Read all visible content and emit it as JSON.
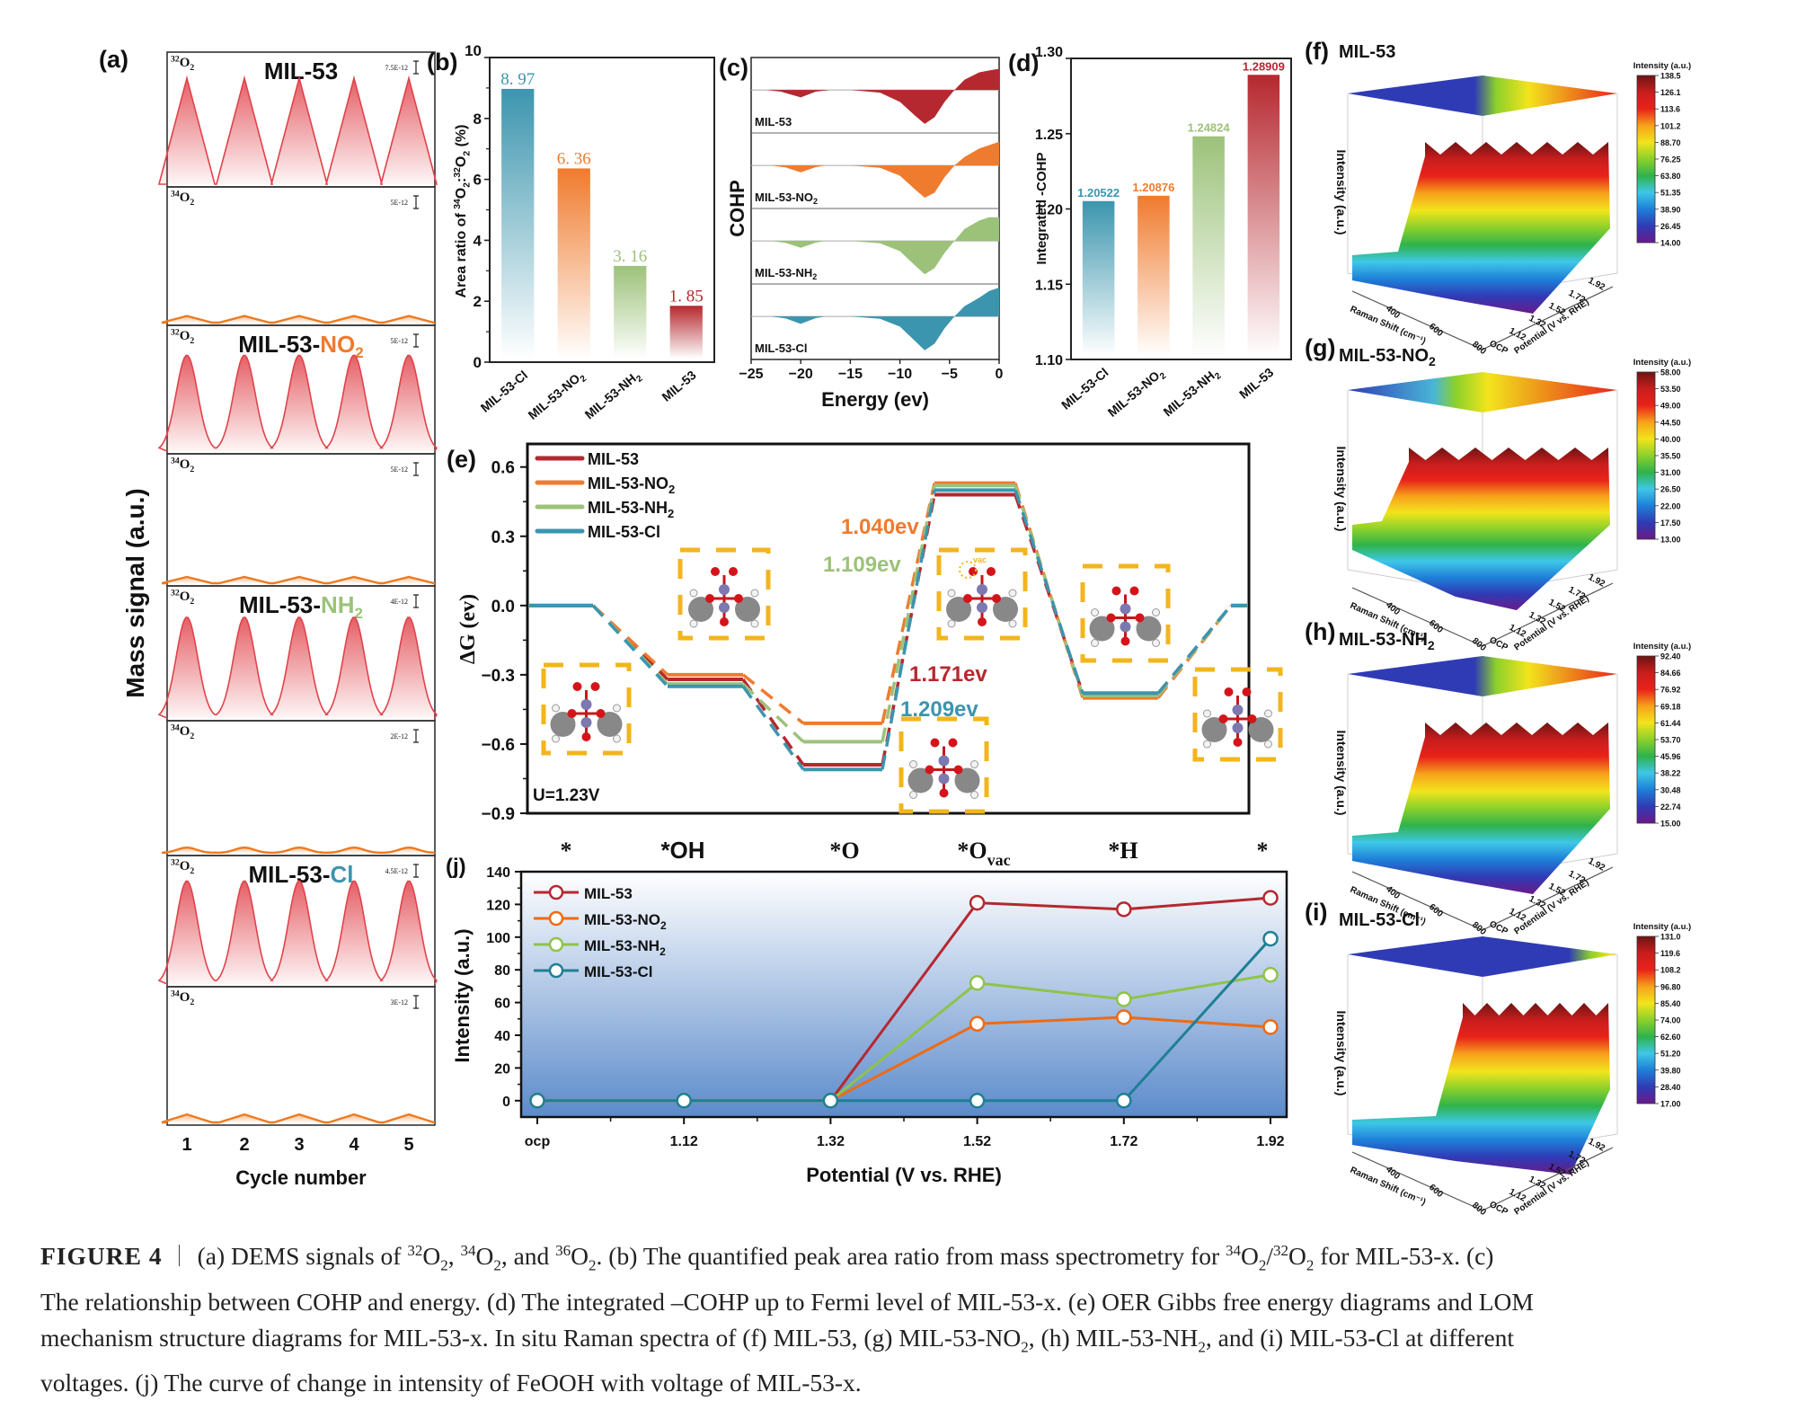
{
  "figure": {
    "label": "FIGURE 4",
    "caption_lines": [
      [
        {
          "t": "(a) DEMS signals of "
        },
        {
          "sup": "32"
        },
        {
          "t": "O"
        },
        {
          "sub": "2"
        },
        {
          "t": ", "
        },
        {
          "sup": "34"
        },
        {
          "t": "O"
        },
        {
          "sub": "2"
        },
        {
          "t": ", and "
        },
        {
          "sup": "36"
        },
        {
          "t": "O"
        },
        {
          "sub": "2"
        },
        {
          "t": ". (b) The quantified peak area ratio from mass spectrometry for "
        },
        {
          "sup": "34"
        },
        {
          "t": "O"
        },
        {
          "sub": "2"
        },
        {
          "t": "/"
        },
        {
          "sup": "32"
        },
        {
          "t": "O"
        },
        {
          "sub": "2"
        },
        {
          "t": " for MIL-53-x. (c)"
        }
      ],
      [
        {
          "t": "The relationship between COHP and energy. (d) The integrated –COHP up to Fermi level of MIL-53-x. (e) OER Gibbs free energy diagrams and LOM"
        }
      ],
      [
        {
          "t": "mechanism structure diagrams for MIL-53-x. In situ Raman spectra of (f) MIL-53, (g) MIL-53-NO"
        },
        {
          "sub": "2"
        },
        {
          "t": ", (h) MIL-53-NH"
        },
        {
          "sub": "2"
        },
        {
          "t": ", and (i) MIL-53-Cl at different"
        }
      ],
      [
        {
          "t": "voltages. (j) The curve of change in intensity of FeOOH with voltage of MIL-53-x."
        }
      ]
    ]
  },
  "colors": {
    "MIL-53": "#b5282f",
    "MIL-53-NO2": "#ef7b2e",
    "MIL-53-NH2": "#9cc27a",
    "MIL-53-Cl": "#3c95ae",
    "dems_32": "#e0434b",
    "dems_34": "#ef7a1f",
    "box_dash": "#f2b51c"
  },
  "chart_data": [
    {
      "id": "a",
      "panel_label": "(a)",
      "type": "line",
      "title": "",
      "ylabel": "Mass signal (a.u.)",
      "xlabel": "Cycle number",
      "xticks": [
        "1",
        "2",
        "3",
        "4",
        "5"
      ],
      "subplots": [
        {
          "material": "MIL-53",
          "material_base": "MIL-53",
          "material_suffix": "",
          "species": "32O2",
          "species_sup": "32",
          "scale_label": "7.5E-12",
          "peak_rel": 0.82,
          "shape": "triangle"
        },
        {
          "material": "MIL-53",
          "species": "34O2",
          "species_sup": "34",
          "scale_label": "5E-12",
          "peak_rel": 0.05,
          "shape": "triangle"
        },
        {
          "material": "MIL-53-NO2",
          "material_base": "MIL-53-",
          "material_suffix": "NO",
          "material_sub": "2",
          "species": "32O2",
          "species_sup": "32",
          "scale_label": "5E-12",
          "peak_rel": 0.78,
          "shape": "gauss"
        },
        {
          "material": "MIL-53-NO2",
          "species": "34O2",
          "species_sup": "34",
          "scale_label": "5E-12",
          "peak_rel": 0.05,
          "shape": "triangle"
        },
        {
          "material": "MIL-53-NH2",
          "material_base": "MIL-53-",
          "material_suffix": "NH",
          "material_sub": "2",
          "species": "32O2",
          "species_sup": "32",
          "scale_label": "4E-12",
          "peak_rel": 0.78,
          "shape": "gauss"
        },
        {
          "material": "MIL-53-NH2",
          "species": "34O2",
          "species_sup": "34",
          "scale_label": "2E-12",
          "peak_rel": 0.04,
          "shape": "gauss"
        },
        {
          "material": "MIL-53-Cl",
          "material_base": "MIL-53-",
          "material_suffix": "Cl",
          "material_sub": "",
          "species": "32O2",
          "species_sup": "32",
          "scale_label": "4.5E-12",
          "peak_rel": 0.82,
          "shape": "gauss"
        },
        {
          "material": "MIL-53-Cl",
          "species": "34O2",
          "species_sup": "34",
          "scale_label": "3E-12",
          "peak_rel": 0.06,
          "shape": "triangle"
        }
      ]
    },
    {
      "id": "b",
      "panel_label": "(b)",
      "type": "bar",
      "ylabel": "Area ratio of 34O2:32O2 (%)",
      "ylabel_parts": [
        {
          "t": "Area ratio of "
        },
        {
          "sup": "34"
        },
        {
          "t": "O"
        },
        {
          "sub": "2"
        },
        {
          "t": ":"
        },
        {
          "sup": "32"
        },
        {
          "t": "O"
        },
        {
          "sub": "2"
        },
        {
          "t": " (%)"
        }
      ],
      "categories": [
        "MIL-53-Cl",
        "MIL-53-NO2",
        "MIL-53-NH2",
        "MIL-53"
      ],
      "values": [
        8.97,
        6.36,
        3.16,
        1.85
      ],
      "data_labels": [
        "8. 97",
        "6. 36",
        "3. 16",
        "1. 85"
      ],
      "ylim": [
        0,
        10
      ],
      "yticks": [
        0,
        2,
        4,
        6,
        8,
        10
      ]
    },
    {
      "id": "c",
      "panel_label": "(c)",
      "type": "area",
      "ylabel": "COHP",
      "xlabel": "Energy (ev)",
      "xlim": [
        -25,
        0
      ],
      "xticks": [
        -25,
        -20,
        -15,
        -10,
        -5,
        0
      ],
      "series": [
        {
          "name": "MIL-53",
          "label": "MIL-53",
          "sub": "",
          "points": [
            [
              -25,
              0
            ],
            [
              -23.5,
              0
            ],
            [
              -22,
              -0.05
            ],
            [
              -20,
              -0.22
            ],
            [
              -18.5,
              -0.05
            ],
            [
              -17,
              0
            ],
            [
              -15,
              0
            ],
            [
              -12,
              -0.08
            ],
            [
              -10,
              -0.35
            ],
            [
              -8.5,
              -0.75
            ],
            [
              -7.5,
              -1.0
            ],
            [
              -6.5,
              -0.8
            ],
            [
              -5.5,
              -0.35
            ],
            [
              -4.5,
              0
            ],
            [
              -3.5,
              0.3
            ],
            [
              -2,
              0.52
            ],
            [
              -0.5,
              0.6
            ],
            [
              0,
              0.62
            ]
          ]
        },
        {
          "name": "MIL-53-NO2",
          "label": "MIL-53-NO",
          "sub": "2",
          "points": [
            [
              -25,
              0
            ],
            [
              -23,
              0
            ],
            [
              -21.5,
              -0.06
            ],
            [
              -20,
              -0.2
            ],
            [
              -18.5,
              -0.05
            ],
            [
              -17.5,
              0
            ],
            [
              -15,
              0
            ],
            [
              -12,
              -0.07
            ],
            [
              -10,
              -0.3
            ],
            [
              -8.5,
              -0.7
            ],
            [
              -7.5,
              -0.95
            ],
            [
              -6.5,
              -0.8
            ],
            [
              -5.5,
              -0.35
            ],
            [
              -4.5,
              0
            ],
            [
              -3.5,
              0.25
            ],
            [
              -2,
              0.5
            ],
            [
              -0.5,
              0.65
            ],
            [
              0,
              0.7
            ]
          ]
        },
        {
          "name": "MIL-53-NH2",
          "label": "MIL-53-NH",
          "sub": "2",
          "points": [
            [
              -25,
              0
            ],
            [
              -23,
              0
            ],
            [
              -21.5,
              -0.06
            ],
            [
              -20,
              -0.2
            ],
            [
              -18.5,
              -0.05
            ],
            [
              -17.5,
              0
            ],
            [
              -15,
              0
            ],
            [
              -12,
              -0.07
            ],
            [
              -10,
              -0.3
            ],
            [
              -8.5,
              -0.72
            ],
            [
              -7.5,
              -0.98
            ],
            [
              -6.5,
              -0.8
            ],
            [
              -5.5,
              -0.35
            ],
            [
              -4.5,
              0
            ],
            [
              -3.5,
              0.35
            ],
            [
              -2,
              0.6
            ],
            [
              -1,
              0.7
            ],
            [
              0,
              0.7
            ]
          ]
        },
        {
          "name": "MIL-53-Cl",
          "label": "MIL-53-Cl",
          "sub": "",
          "points": [
            [
              -25,
              0
            ],
            [
              -23,
              0
            ],
            [
              -21.5,
              -0.06
            ],
            [
              -20,
              -0.22
            ],
            [
              -18.5,
              -0.05
            ],
            [
              -17.5,
              0
            ],
            [
              -15,
              0
            ],
            [
              -12,
              -0.07
            ],
            [
              -10,
              -0.3
            ],
            [
              -8.5,
              -0.72
            ],
            [
              -7.5,
              -1.0
            ],
            [
              -6.5,
              -0.8
            ],
            [
              -5.5,
              -0.35
            ],
            [
              -4.5,
              0
            ],
            [
              -3.5,
              0.3
            ],
            [
              -2,
              0.55
            ],
            [
              -1,
              0.75
            ],
            [
              0,
              0.85
            ]
          ]
        }
      ]
    },
    {
      "id": "d",
      "panel_label": "(d)",
      "type": "bar",
      "ylabel": "Integrated -COHP",
      "categories": [
        "MIL-53-Cl",
        "MIL-53-NO2",
        "MIL-53-NH2",
        "MIL-53"
      ],
      "values": [
        1.20522,
        1.20876,
        1.24824,
        1.28909
      ],
      "data_labels": [
        "1.20522",
        "1.20876",
        "1.24824",
        "1.28909"
      ],
      "ylim": [
        1.1,
        1.3
      ],
      "yticks": [
        "1.10",
        "1.15",
        "1.20",
        "1.25",
        "1.30"
      ]
    },
    {
      "id": "e",
      "panel_label": "(e)",
      "type": "line",
      "ylabel": "ΔG (ev)",
      "ylim": [
        -0.9,
        0.7
      ],
      "yticks": [
        "0.6",
        "0.3",
        "0.0",
        "-0.3",
        "-0.6",
        "-0.9"
      ],
      "ytick_values": [
        0.6,
        0.3,
        0.0,
        -0.3,
        -0.6,
        -0.9
      ],
      "steps": [
        "*",
        "*OH",
        "*O",
        "*Ovac",
        "*H",
        "*"
      ],
      "step_labels": [
        {
          "main": "*",
          "sub": ""
        },
        {
          "main": "*OH",
          "sub": ""
        },
        {
          "main": "*O",
          "sub": ""
        },
        {
          "main": "*O",
          "sub": "vac"
        },
        {
          "main": "*H",
          "sub": ""
        },
        {
          "main": "*",
          "sub": ""
        }
      ],
      "annotation": "U=1.23V",
      "series": [
        {
          "name": "MIL-53",
          "legend": "MIL-53",
          "legend_sub": "",
          "values": [
            0.0,
            -0.32,
            -0.69,
            0.48,
            -0.38,
            0.0
          ],
          "barrier": "1.171ev"
        },
        {
          "name": "MIL-53-NO2",
          "legend": "MIL-53-NO",
          "legend_sub": "2",
          "values": [
            0.0,
            -0.3,
            -0.51,
            0.53,
            -0.4,
            0.0
          ],
          "barrier": "1.040ev"
        },
        {
          "name": "MIL-53-NH2",
          "legend": "MIL-53-NH",
          "legend_sub": "2",
          "values": [
            0.0,
            -0.34,
            -0.59,
            0.52,
            -0.39,
            0.0
          ],
          "barrier": "1.109ev"
        },
        {
          "name": "MIL-53-Cl",
          "legend": "MIL-53-Cl",
          "legend_sub": "",
          "values": [
            0.0,
            -0.35,
            -0.71,
            0.5,
            -0.38,
            0.0
          ],
          "barrier": "1.209ev"
        }
      ],
      "structure_insets": [
        "*",
        "*OH",
        "*Ovac",
        "*O",
        "*H",
        "*"
      ],
      "vacancy_label": "vac"
    },
    {
      "id": "j",
      "panel_label": "(j)",
      "type": "line",
      "xlabel": "Potential (V vs. RHE)",
      "ylabel": "Intensity (a.u.)",
      "categories": [
        "ocp",
        "1.12",
        "1.32",
        "1.52",
        "1.72",
        "1.92"
      ],
      "ylim": [
        -10,
        140
      ],
      "yticks": [
        0,
        20,
        40,
        60,
        80,
        100,
        120,
        140
      ],
      "series": [
        {
          "name": "MIL-53",
          "legend": "MIL-53",
          "legend_sub": "",
          "values": [
            0,
            0,
            0,
            121,
            117,
            124
          ]
        },
        {
          "name": "MIL-53-NO2",
          "legend": "MIL-53-NO",
          "legend_sub": "2",
          "values": [
            0,
            0,
            0,
            47,
            51,
            45
          ]
        },
        {
          "name": "MIL-53-NH2",
          "legend": "MIL-53-NH",
          "legend_sub": "2",
          "values": [
            0,
            0,
            0,
            72,
            62,
            77
          ]
        },
        {
          "name": "MIL-53-Cl",
          "legend": "MIL-53-Cl",
          "legend_sub": "",
          "values": [
            0,
            0,
            0,
            0,
            0,
            99
          ]
        }
      ]
    },
    {
      "id": "f",
      "panel_label": "(f)",
      "type": "heatmap",
      "title": "MIL-53",
      "title_sub": "",
      "colorbar_title": "Intensity (a.u.)",
      "colorbar_ticks": [
        "138.5",
        "126.1",
        "113.6",
        "101.2",
        "88.70",
        "76.25",
        "63.80",
        "51.35",
        "38.90",
        "26.45",
        "14.00"
      ],
      "zlabel": "Intensity (a.u.)",
      "xlabel": "Raman Shift (cm⁻¹)",
      "xticks": [
        "400",
        "600",
        "800"
      ],
      "ylabel": "Potential (V vs. RHE)",
      "yticks": [
        "OCP",
        "1.12",
        "1.32",
        "1.52",
        "1.72",
        "1.92"
      ],
      "step_at_potential": "1.52",
      "low_level": 0.2,
      "high_level": 0.8
    },
    {
      "id": "g",
      "panel_label": "(g)",
      "type": "heatmap",
      "title": "MIL-53-NO",
      "title_sub": "2",
      "colorbar_title": "Intensity (a.u.)",
      "colorbar_ticks": [
        "58.00",
        "53.50",
        "49.00",
        "44.50",
        "40.00",
        "35.50",
        "31.00",
        "26.50",
        "22.00",
        "17.50",
        "13.00"
      ],
      "zlabel": "Intensity (a.u.)",
      "xlabel": "Raman Shift (cm⁻¹)",
      "xticks": [
        "400",
        "600",
        "800"
      ],
      "ylabel": "Potential (V vs. RHE)",
      "yticks": [
        "OCP",
        "1.12",
        "1.32",
        "1.52",
        "1.72",
        "1.92"
      ],
      "step_at_potential": "1.32",
      "low_level": 0.35,
      "high_level": 0.75
    },
    {
      "id": "h",
      "panel_label": "(h)",
      "type": "heatmap",
      "title": "MIL-53-NH",
      "title_sub": "2",
      "colorbar_title": "Intensity (a.u.)",
      "colorbar_ticks": [
        "92.40",
        "84.66",
        "76.92",
        "69.18",
        "61.44",
        "53.70",
        "45.96",
        "38.22",
        "30.48",
        "22.74",
        "15.00"
      ],
      "zlabel": "Intensity (a.u.)",
      "xlabel": "Raman Shift (cm⁻¹)",
      "xticks": [
        "400",
        "600",
        "800"
      ],
      "ylabel": "Potential (V vs. RHE)",
      "yticks": [
        "OCP",
        "1.12",
        "1.32",
        "1.52",
        "1.72",
        "1.92"
      ],
      "step_at_potential": "1.52",
      "low_level": 0.2,
      "high_level": 0.8
    },
    {
      "id": "i",
      "panel_label": "(i)",
      "type": "heatmap",
      "title": "MIL-53-Cl",
      "title_sub": "",
      "colorbar_title": "Intensity (a.u.)",
      "colorbar_ticks": [
        "131.0",
        "119.6",
        "108.2",
        "96.80",
        "85.40",
        "74.00",
        "62.60",
        "51.20",
        "39.80",
        "28.40",
        "17.00"
      ],
      "zlabel": "Intensity (a.u.)",
      "xlabel": "Raman Shift (cm⁻¹)",
      "xticks": [
        "400",
        "600",
        "800"
      ],
      "ylabel": "Potential (V vs. RHE)",
      "yticks": [
        "OCP",
        "1.12",
        "1.32",
        "1.52",
        "1.72",
        "1.92"
      ],
      "step_at_potential": "1.92",
      "low_level": 0.18,
      "high_level": 0.8
    }
  ]
}
